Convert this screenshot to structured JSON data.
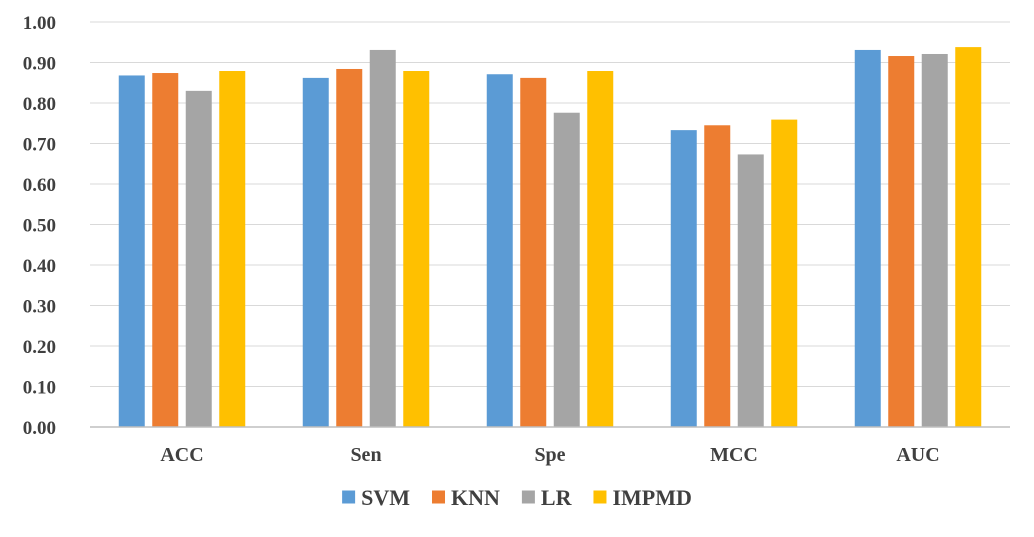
{
  "chart_data": {
    "type": "bar",
    "title": "",
    "xlabel": "",
    "ylabel": "",
    "categories": [
      "ACC",
      "Sen",
      "Spe",
      "MCC",
      "AUC"
    ],
    "series": [
      {
        "name": "SVM",
        "color": "#5B9BD5",
        "values": [
          0.868,
          0.862,
          0.871,
          0.733,
          0.931
        ]
      },
      {
        "name": "KNN",
        "color": "#ED7D31",
        "values": [
          0.874,
          0.884,
          0.862,
          0.745,
          0.916
        ]
      },
      {
        "name": "LR",
        "color": "#A5A5A5",
        "values": [
          0.83,
          0.931,
          0.776,
          0.673,
          0.921
        ]
      },
      {
        "name": "IMPMD",
        "color": "#FFC000",
        "values": [
          0.879,
          0.879,
          0.879,
          0.759,
          0.938
        ]
      }
    ],
    "ylim": [
      0,
      1.0
    ],
    "yticks": [
      "0.00",
      "0.10",
      "0.20",
      "0.30",
      "0.40",
      "0.50",
      "0.60",
      "0.70",
      "0.80",
      "0.90",
      "1.00"
    ],
    "grid": true,
    "legend_position": "bottom"
  }
}
